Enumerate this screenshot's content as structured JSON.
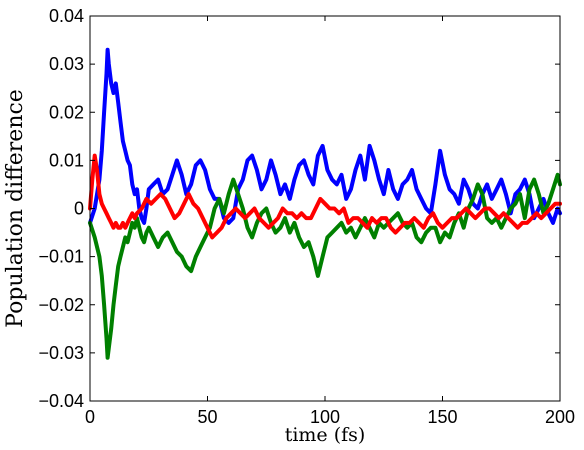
{
  "chart_data": {
    "type": "line",
    "title": "",
    "xlabel": "time (fs)",
    "ylabel": "Population difference",
    "xlim": [
      0,
      200
    ],
    "ylim": [
      -0.04,
      0.04
    ],
    "xticks": [
      0,
      50,
      100,
      150,
      200
    ],
    "xtick_labels": [
      "0",
      "50",
      "100",
      "150",
      "200"
    ],
    "yticks": [
      -0.04,
      -0.03,
      -0.02,
      -0.01,
      0,
      0.01,
      0.02,
      0.03,
      0.04
    ],
    "ytick_labels": [
      "−0.04",
      "−0.03",
      "−0.02",
      "−0.01",
      "0",
      "0.01",
      "0.02",
      "0.03",
      "0.04"
    ],
    "grid": false,
    "legend": "none",
    "series": [
      {
        "color": "#0000ff",
        "x": [
          0,
          2,
          4,
          5,
          6,
          7,
          7.5,
          8,
          9,
          10,
          11,
          12,
          13,
          14,
          15,
          16,
          17,
          18,
          19,
          20,
          21,
          22,
          23,
          24,
          25,
          27,
          29,
          31,
          33,
          35,
          37,
          39,
          41,
          43,
          45,
          47,
          49,
          51,
          53,
          55,
          57,
          59,
          61,
          63,
          65,
          67,
          69,
          71,
          73,
          75,
          77,
          79,
          81,
          83,
          85,
          87,
          89,
          91,
          93,
          95,
          97,
          99,
          101,
          103,
          105,
          107,
          109,
          111,
          113,
          115,
          117,
          119,
          121,
          123,
          125,
          127,
          129,
          131,
          133,
          135,
          137,
          139,
          141,
          143,
          145,
          147,
          149,
          151,
          153,
          155,
          157,
          159,
          161,
          163,
          165,
          167,
          169,
          171,
          173,
          175,
          177,
          179,
          181,
          183,
          185,
          187,
          189,
          191,
          193,
          195,
          197,
          199,
          200
        ],
        "y": [
          -0.003,
          0.0,
          0.006,
          0.012,
          0.02,
          0.028,
          0.033,
          0.03,
          0.026,
          0.024,
          0.026,
          0.022,
          0.018,
          0.014,
          0.012,
          0.01,
          0.009,
          0.005,
          0.003,
          0.004,
          0.0,
          -0.002,
          -0.003,
          0.0,
          0.004,
          0.005,
          0.006,
          0.003,
          0.004,
          0.007,
          0.01,
          0.007,
          0.003,
          0.005,
          0.009,
          0.01,
          0.008,
          0.004,
          0.002,
          0.002,
          -0.002,
          -0.003,
          -0.002,
          0.004,
          0.006,
          0.01,
          0.011,
          0.008,
          0.004,
          0.006,
          0.01,
          0.007,
          0.003,
          0.005,
          0.002,
          0.006,
          0.009,
          0.01,
          0.007,
          0.005,
          0.011,
          0.013,
          0.008,
          0.006,
          0.005,
          0.007,
          0.002,
          0.004,
          0.008,
          0.011,
          0.006,
          0.013,
          0.01,
          0.006,
          0.003,
          0.008,
          0.004,
          0.002,
          0.005,
          0.006,
          0.008,
          0.004,
          0.002,
          0.0,
          -0.001,
          0.005,
          0.012,
          0.007,
          0.004,
          0.003,
          0.001,
          0.006,
          0.004,
          0.001,
          0.0,
          0.003,
          0.005,
          0.002,
          0.004,
          0.006,
          0.003,
          -0.001,
          0.003,
          0.004,
          0.006,
          0.003,
          -0.002,
          0.0,
          0.002,
          -0.001,
          -0.003,
          0.0,
          -0.001
        ]
      },
      {
        "color": "#008000",
        "x": [
          0,
          2,
          4,
          5,
          6,
          7,
          7.5,
          8,
          9,
          10,
          11,
          12,
          13,
          14,
          15,
          16,
          17,
          18,
          19,
          20,
          21,
          22,
          23,
          24,
          25,
          27,
          29,
          31,
          33,
          35,
          37,
          39,
          41,
          43,
          45,
          47,
          49,
          51,
          53,
          55,
          57,
          59,
          61,
          63,
          65,
          67,
          69,
          71,
          73,
          75,
          77,
          79,
          81,
          83,
          85,
          87,
          89,
          91,
          93,
          95,
          97,
          99,
          101,
          103,
          105,
          107,
          109,
          111,
          113,
          115,
          117,
          119,
          121,
          123,
          125,
          127,
          129,
          131,
          133,
          135,
          137,
          139,
          141,
          143,
          145,
          147,
          149,
          151,
          153,
          155,
          157,
          159,
          161,
          163,
          165,
          167,
          169,
          171,
          173,
          175,
          177,
          179,
          181,
          183,
          185,
          187,
          189,
          191,
          193,
          195,
          197,
          199,
          200
        ],
        "y": [
          -0.003,
          -0.006,
          -0.01,
          -0.014,
          -0.02,
          -0.027,
          -0.031,
          -0.029,
          -0.025,
          -0.02,
          -0.016,
          -0.012,
          -0.01,
          -0.008,
          -0.006,
          -0.007,
          -0.005,
          -0.003,
          -0.004,
          -0.002,
          -0.004,
          -0.006,
          -0.007,
          -0.005,
          -0.004,
          -0.006,
          -0.008,
          -0.006,
          -0.005,
          -0.007,
          -0.009,
          -0.01,
          -0.012,
          -0.013,
          -0.01,
          -0.008,
          -0.006,
          -0.004,
          0.0,
          0.002,
          -0.001,
          0.003,
          0.006,
          0.003,
          0.0,
          -0.004,
          -0.006,
          -0.003,
          -0.001,
          0.0,
          -0.003,
          -0.005,
          -0.004,
          -0.002,
          -0.005,
          -0.003,
          -0.006,
          -0.008,
          -0.007,
          -0.01,
          -0.014,
          -0.01,
          -0.006,
          -0.005,
          -0.004,
          -0.003,
          -0.005,
          -0.004,
          -0.006,
          -0.004,
          -0.002,
          -0.004,
          -0.006,
          -0.003,
          -0.004,
          -0.003,
          -0.002,
          -0.001,
          -0.003,
          -0.004,
          -0.003,
          -0.006,
          -0.007,
          -0.005,
          -0.004,
          -0.004,
          -0.007,
          -0.005,
          -0.006,
          -0.003,
          -0.001,
          -0.004,
          0.0,
          0.002,
          0.005,
          0.003,
          -0.002,
          -0.003,
          -0.002,
          -0.004,
          -0.002,
          0.0,
          0.001,
          0.003,
          -0.002,
          0.004,
          0.006,
          0.003,
          -0.001,
          0.001,
          0.004,
          0.007,
          0.005
        ]
      },
      {
        "color": "#ff0000",
        "x": [
          0,
          1,
          2,
          3,
          4,
          5,
          6,
          7,
          8,
          9,
          10,
          11,
          12,
          13,
          14,
          15,
          16,
          17,
          18,
          19,
          20,
          22,
          24,
          26,
          28,
          30,
          32,
          34,
          36,
          38,
          40,
          42,
          44,
          46,
          48,
          50,
          52,
          54,
          56,
          58,
          60,
          62,
          64,
          66,
          68,
          70,
          72,
          74,
          76,
          78,
          80,
          82,
          84,
          86,
          88,
          90,
          92,
          94,
          96,
          98,
          100,
          102,
          104,
          106,
          108,
          110,
          112,
          114,
          116,
          118,
          120,
          122,
          124,
          126,
          128,
          130,
          132,
          134,
          136,
          138,
          140,
          142,
          144,
          146,
          148,
          150,
          152,
          154,
          156,
          158,
          160,
          162,
          164,
          166,
          168,
          170,
          172,
          174,
          176,
          178,
          180,
          182,
          184,
          186,
          188,
          190,
          192,
          194,
          196,
          198,
          200
        ],
        "y": [
          0.0,
          0.006,
          0.011,
          0.008,
          0.003,
          0.001,
          0.0,
          -0.001,
          -0.002,
          -0.003,
          -0.004,
          -0.003,
          -0.004,
          -0.004,
          -0.003,
          -0.004,
          -0.003,
          -0.002,
          -0.001,
          -0.002,
          -0.001,
          0.0,
          0.002,
          0.001,
          0.002,
          0.003,
          0.002,
          0.0,
          -0.002,
          -0.001,
          0.001,
          0.003,
          0.001,
          0.0,
          -0.002,
          -0.004,
          -0.006,
          -0.005,
          -0.004,
          -0.002,
          -0.001,
          0.0,
          -0.001,
          -0.002,
          -0.001,
          0.0,
          -0.002,
          -0.003,
          -0.004,
          -0.003,
          -0.002,
          0.0,
          -0.001,
          -0.001,
          -0.002,
          -0.001,
          -0.002,
          -0.002,
          0.0,
          0.002,
          0.001,
          0.0,
          0.0,
          -0.001,
          0.0,
          -0.003,
          -0.002,
          -0.002,
          -0.003,
          -0.004,
          -0.002,
          -0.003,
          -0.002,
          -0.002,
          -0.004,
          -0.005,
          -0.004,
          -0.003,
          -0.003,
          -0.002,
          -0.003,
          -0.004,
          -0.002,
          -0.001,
          -0.003,
          -0.004,
          -0.003,
          -0.002,
          -0.002,
          -0.001,
          0.0,
          -0.001,
          -0.002,
          -0.001,
          0.0,
          0.0,
          -0.001,
          -0.002,
          -0.001,
          -0.002,
          -0.003,
          -0.004,
          -0.003,
          -0.003,
          -0.002,
          -0.001,
          -0.002,
          -0.001,
          0.0,
          0.001,
          0.001
        ]
      }
    ]
  }
}
